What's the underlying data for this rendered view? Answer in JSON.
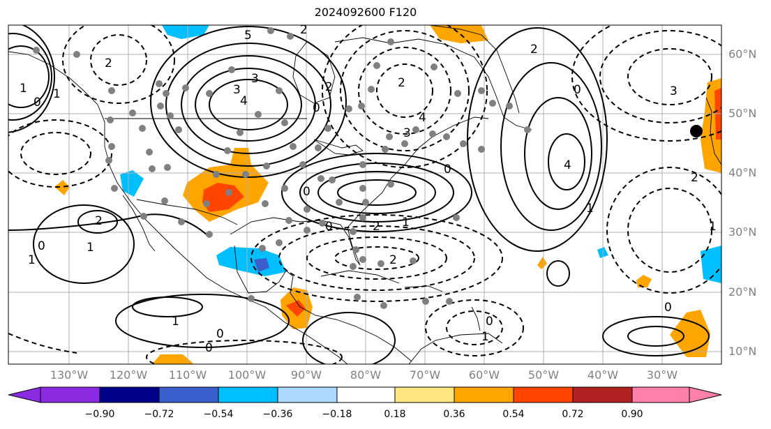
{
  "title": "2024092600 F120",
  "lat_labels": [
    "60°N",
    "50°N",
    "40°N",
    "30°N",
    "20°N",
    "10°N"
  ],
  "lon_labels": [
    "130°W",
    "120°W",
    "110°W",
    "100°W",
    "90°W",
    "80°W",
    "70°W",
    "60°W",
    "50°W",
    "40°W",
    "30°W"
  ],
  "colorbar": {
    "ticks": [
      "−0.90",
      "−0.72",
      "−0.54",
      "−0.36",
      "−0.18",
      "0.18",
      "0.36",
      "0.54",
      "0.72",
      "0.90"
    ],
    "colors": [
      "#8a2be2",
      "#00008b",
      "#3a5fcd",
      "#00bfff",
      "#add8ff",
      "#ffffff",
      "#ffe680",
      "#ffa500",
      "#ff4500",
      "#b22222",
      "#ff80aa"
    ]
  },
  "contour_labels": [
    "5",
    "3",
    "3",
    "4",
    "2",
    "2",
    "2",
    "1",
    "1",
    "0",
    "0",
    "3",
    "4",
    "0",
    "4",
    "0",
    "2",
    "2",
    "1",
    "0",
    "2",
    "3",
    "2",
    "1",
    "1",
    "0",
    "1",
    "0",
    "1",
    "2",
    "1",
    "0",
    "0",
    "2",
    "1",
    "0",
    "0"
  ]
}
